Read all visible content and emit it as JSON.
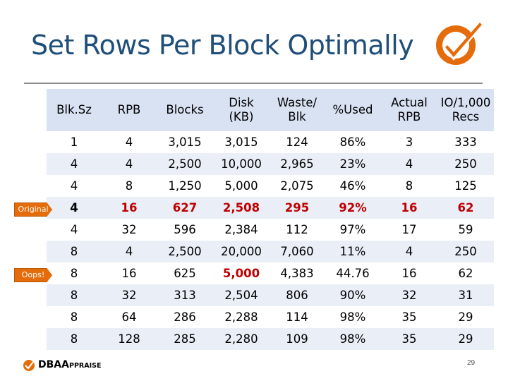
{
  "slide": {
    "title": "Set Rows Per Block Optimally",
    "page_number": "29",
    "footer_brand_main": "DBA",
    "footer_brand_small": "PPRAISE",
    "footer_brand_a": "A"
  },
  "badges": {
    "original": "Original",
    "oops": "Oops!"
  },
  "table": {
    "headers": [
      [
        "Blk.Sz",
        ""
      ],
      [
        "RPB",
        ""
      ],
      [
        "Blocks",
        ""
      ],
      [
        "Disk",
        "(KB)"
      ],
      [
        "Waste/",
        "Blk"
      ],
      [
        "%Used",
        ""
      ],
      [
        "Actual",
        "RPB"
      ],
      [
        "IO/1,000",
        "Recs"
      ]
    ],
    "rows": [
      [
        "1",
        "4",
        "3,015",
        "3,015",
        "124",
        "86%",
        "3",
        "333"
      ],
      [
        "4",
        "4",
        "2,500",
        "10,000",
        "2,965",
        "23%",
        "4",
        "250"
      ],
      [
        "4",
        "8",
        "1,250",
        "5,000",
        "2,075",
        "46%",
        "8",
        "125"
      ],
      [
        "4",
        "16",
        "627",
        "2,508",
        "295",
        "92%",
        "16",
        "62"
      ],
      [
        "4",
        "32",
        "596",
        "2,384",
        "112",
        "97%",
        "17",
        "59"
      ],
      [
        "8",
        "4",
        "2,500",
        "20,000",
        "7,060",
        "11%",
        "4",
        "250"
      ],
      [
        "8",
        "16",
        "625",
        "5,000",
        "4,383",
        "44.76",
        "16",
        "62"
      ],
      [
        "8",
        "32",
        "313",
        "2,504",
        "806",
        "90%",
        "32",
        "31"
      ],
      [
        "8",
        "64",
        "286",
        "2,288",
        "114",
        "98%",
        "35",
        "29"
      ],
      [
        "8",
        "128",
        "285",
        "2,280",
        "109",
        "98%",
        "35",
        "29"
      ]
    ]
  },
  "colors": {
    "title": "#1f4e79",
    "accent_orange": "#e46c0a",
    "highlight_red": "#c00000",
    "header_fill": "#d9e2f3",
    "band_fill": "#e9eef7"
  },
  "icons": {
    "top_logo": "orange-circle-checkmark-icon",
    "footer_logo": "checkmark-icon"
  }
}
